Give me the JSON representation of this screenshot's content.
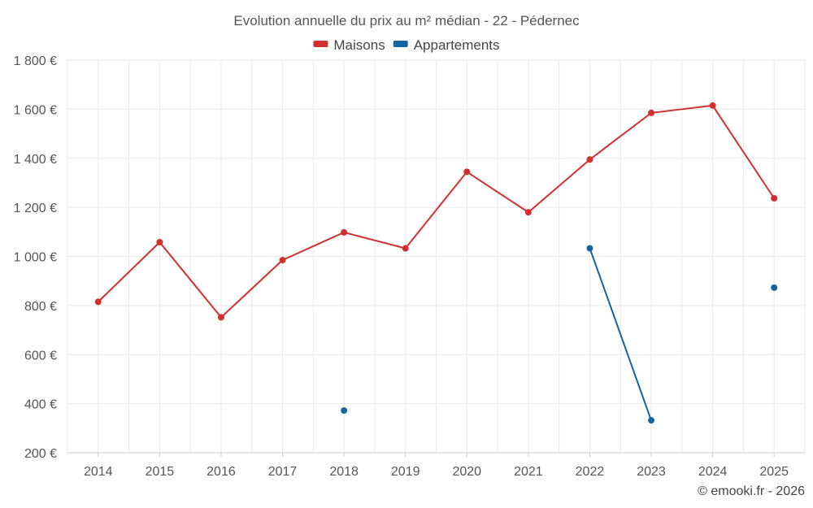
{
  "chart_data": {
    "type": "line",
    "title": "Evolution annuelle du prix au m² médian - 22 - Pédernec",
    "categories": [
      "2014",
      "2015",
      "2016",
      "2017",
      "2018",
      "2019",
      "2020",
      "2021",
      "2022",
      "2023",
      "2024",
      "2025"
    ],
    "series": [
      {
        "name": "Maisons",
        "color": "#d32f2f",
        "values": [
          815,
          1058,
          752,
          985,
          1098,
          1033,
          1345,
          1180,
          1395,
          1585,
          1615,
          1237
        ]
      },
      {
        "name": "Appartements",
        "color": "#1565a0",
        "values": [
          null,
          null,
          null,
          null,
          372,
          null,
          null,
          null,
          1033,
          332,
          null,
          873
        ]
      }
    ],
    "yticks": [
      200,
      400,
      600,
      800,
      1000,
      1200,
      1400,
      1600,
      1800
    ],
    "ytick_labels": [
      "200 €",
      "400 €",
      "600 €",
      "800 €",
      "1 000 €",
      "1 200 €",
      "1 400 €",
      "1 600 €",
      "1 800 €"
    ],
    "ylim": [
      200,
      1800
    ],
    "xlabel": "",
    "ylabel": "",
    "grid": true,
    "legend_position": "top-center"
  },
  "credit": "© emooki.fr - 2026"
}
